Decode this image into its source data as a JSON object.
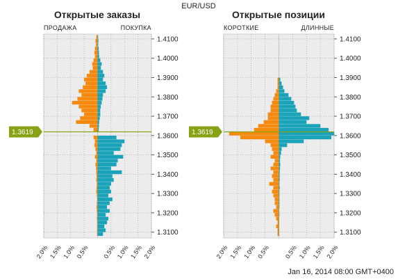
{
  "header": {
    "symbol": "EUR/USD"
  },
  "footer": {
    "timestamp": "Jan 16, 2014 08:00 GMT+0400"
  },
  "colors": {
    "sell": "#f58a0f",
    "buy": "#1aa3b9",
    "marker": "#86a316",
    "panel_bg": "#ececec",
    "grid": "#9a9a9a"
  },
  "chart_data": [
    {
      "type": "bar",
      "orientation": "horizontal-mirrored",
      "title": "Открытые заказы",
      "left_label": "ПРОДАЖА",
      "right_label": "ПОКУПКА",
      "y_ticks": [
        "1.4100",
        "1.4000",
        "1.3900",
        "1.3800",
        "1.3700",
        "1.3600",
        "1.3500",
        "1.3400",
        "1.3300",
        "1.3200",
        "1.3100"
      ],
      "ylim": [
        1.307,
        1.4125
      ],
      "x_ticks": [
        "2.0%",
        "1.5%",
        "1.0%",
        "0.5%",
        "0.5%",
        "1.0%",
        "1.5%",
        "2.0%"
      ],
      "xlim": [
        -2.0,
        2.0
      ],
      "current_price": "1.3619",
      "price_levels": [
        1.411,
        1.409,
        1.407,
        1.405,
        1.403,
        1.401,
        1.399,
        1.397,
        1.395,
        1.393,
        1.391,
        1.389,
        1.387,
        1.385,
        1.383,
        1.381,
        1.379,
        1.377,
        1.375,
        1.373,
        1.371,
        1.369,
        1.367,
        1.365,
        1.363,
        1.359,
        1.357,
        1.355,
        1.353,
        1.351,
        1.349,
        1.347,
        1.345,
        1.343,
        1.341,
        1.339,
        1.337,
        1.335,
        1.333,
        1.331,
        1.329,
        1.327,
        1.325,
        1.323,
        1.321,
        1.319,
        1.317,
        1.315,
        1.313,
        1.311,
        1.309
      ],
      "series": [
        {
          "name": "ПРОДАЖА",
          "side": "left",
          "values": [
            0.05,
            0.08,
            0.06,
            0.1,
            0.12,
            0.1,
            0.15,
            0.2,
            0.18,
            0.3,
            0.4,
            0.5,
            0.45,
            0.55,
            0.7,
            0.6,
            0.75,
            0.95,
            0.7,
            0.6,
            0.5,
            0.65,
            0.8,
            0.3,
            0.15,
            0.15,
            0.1,
            0.12,
            0.08,
            0.05,
            0.1,
            0.05,
            0.08,
            0.06,
            0.05,
            0.04,
            0.05,
            0.03,
            0.04,
            0.05,
            0.03,
            0.02,
            0.03,
            0.04,
            0.03,
            0.02,
            0.03,
            0.02,
            0.02,
            0.02,
            0.02
          ]
        },
        {
          "name": "ПОКУПКА",
          "side": "right",
          "values": [
            0.02,
            0.03,
            0.02,
            0.04,
            0.05,
            0.06,
            0.1,
            0.15,
            0.12,
            0.2,
            0.25,
            0.2,
            0.3,
            0.35,
            0.3,
            0.2,
            0.18,
            0.15,
            0.12,
            0.1,
            0.1,
            0.08,
            0.06,
            0.05,
            0.04,
            0.7,
            1.0,
            0.9,
            0.85,
            0.6,
            0.95,
            0.75,
            0.7,
            0.5,
            0.9,
            0.55,
            0.6,
            0.5,
            0.45,
            0.5,
            0.4,
            0.55,
            0.45,
            0.35,
            0.45,
            0.3,
            0.4,
            0.35,
            0.25,
            0.3,
            0.2
          ]
        }
      ]
    },
    {
      "type": "bar",
      "orientation": "horizontal-mirrored",
      "title": "Открытые позиции",
      "left_label": "КОРОТКИЕ",
      "right_label": "ДЛИННЫЕ",
      "y_ticks": [
        "1.4100",
        "1.4000",
        "1.3900",
        "1.3800",
        "1.3700",
        "1.3600",
        "1.3500",
        "1.3400",
        "1.3300",
        "1.3200",
        "1.3100"
      ],
      "ylim": [
        1.307,
        1.4125
      ],
      "x_ticks": [
        "2.0%",
        "1.5%",
        "1.0%",
        "0.5%",
        "0.5%",
        "1.0%",
        "1.5%",
        "2.0%"
      ],
      "xlim": [
        -2.0,
        2.0
      ],
      "current_price": "1.3619",
      "price_levels": [
        1.389,
        1.387,
        1.385,
        1.383,
        1.381,
        1.379,
        1.377,
        1.375,
        1.373,
        1.371,
        1.369,
        1.367,
        1.365,
        1.363,
        1.361,
        1.359,
        1.357,
        1.355,
        1.353,
        1.351,
        1.349,
        1.347,
        1.345,
        1.343,
        1.341,
        1.339,
        1.337,
        1.335,
        1.333,
        1.331,
        1.329,
        1.327,
        1.325,
        1.323,
        1.321,
        1.319,
        1.317,
        1.315,
        1.313,
        1.311,
        1.309
      ],
      "series": [
        {
          "name": "КОРОТКИЕ",
          "side": "left",
          "values": [
            0.05,
            0.05,
            0.05,
            0.1,
            0.15,
            0.2,
            0.25,
            0.3,
            0.3,
            0.4,
            0.4,
            0.55,
            0.75,
            0.9,
            1.8,
            1.4,
            0.5,
            0.3,
            0.25,
            0.2,
            0.3,
            0.15,
            0.2,
            0.3,
            0.2,
            0.25,
            0.2,
            0.35,
            0.2,
            0.25,
            0.2,
            0.15,
            0.15,
            0.1,
            0.2,
            0.15,
            0.1,
            0.05,
            0.1,
            0.05,
            0.05
          ]
        },
        {
          "name": "ДЛИННЫЕ",
          "side": "right",
          "values": [
            0.05,
            0.1,
            0.15,
            0.2,
            0.35,
            0.45,
            0.55,
            0.6,
            0.65,
            0.8,
            1.1,
            1.0,
            1.5,
            1.8,
            2.0,
            1.9,
            0.9,
            0.3,
            0.1,
            0.08,
            0.05,
            0.04,
            0.05,
            0.04,
            0.03,
            0.03,
            0.03,
            0.02,
            0.03,
            0.02,
            0.02,
            0.02,
            0.02,
            0.02,
            0.01,
            0.02,
            0.01,
            0.01,
            0.01,
            0.01,
            0.01
          ]
        }
      ]
    }
  ]
}
